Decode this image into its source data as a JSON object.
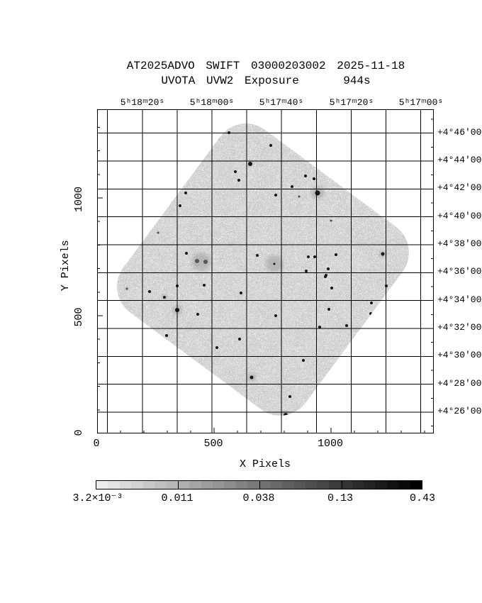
{
  "chart_data": {
    "type": "heatmap",
    "title": "AT2025ADVO SWIFT 03000203002 2025-11-18",
    "subtitle": "UVOTA UVW2 Exposure    944s",
    "xlabel": "X Pixels",
    "ylabel": "Y Pixels",
    "x_tick_labels": [
      "0",
      "500",
      "1000"
    ],
    "y_tick_labels": [
      "0",
      "500",
      "1000"
    ],
    "x_range": [
      0,
      1440
    ],
    "y_range": [
      0,
      1380
    ],
    "grid": "on",
    "top_axis_ra_tick_labels": [
      "5ʰ18ᵐ20ˢ",
      "5ʰ18ᵐ00ˢ",
      "5ʰ17ᵐ40ˢ",
      "5ʰ17ᵐ20ˢ",
      "5ʰ17ᵐ00ˢ"
    ],
    "right_axis_dec_tick_labels": [
      "+4°46'00",
      "+4°44'00",
      "+4°42'00",
      "+4°40'00",
      "+4°38'00",
      "+4°36'00",
      "+4°34'00",
      "+4°32'00",
      "+4°30'00",
      "+4°28'00",
      "+4°26'00"
    ],
    "colorbar": {
      "orientation": "horizontal",
      "scale": "log",
      "tick_labels": [
        "3.2×10⁻³",
        "0.011",
        "0.038",
        "0.13",
        "0.43"
      ],
      "min_color": "#ececec",
      "max_color": "#000000"
    },
    "field": {
      "shape": "rotated-rounded-square",
      "rotation_deg": 36.5,
      "background": "#d6d6d6",
      "sources": [
        [
          311,
          118,
          3.5,
          9,
          0
        ],
        [
          141,
          214,
          3,
          0,
          0
        ],
        [
          153,
          215,
          3,
          0,
          0
        ],
        [
          147,
          215,
          0,
          13,
          0
        ],
        [
          250,
          218,
          1.5,
          12,
          0
        ],
        [
          113,
          283,
          3,
          7,
          0
        ],
        [
          266,
          431,
          3,
          6,
          0
        ],
        [
          218,
          378,
          2.5,
          6,
          0
        ],
        [
          216,
          77,
          3,
          4,
          0
        ],
        [
          403,
          204,
          2.5,
          5,
          0
        ],
        [
          95,
          265,
          2,
          4,
          0
        ],
        [
          186,
          33,
          2,
          0,
          0
        ],
        [
          245,
          51,
          2,
          0,
          0
        ],
        [
          195,
          88,
          2,
          0,
          0
        ],
        [
          200,
          100,
          2,
          0,
          0
        ],
        [
          294,
          94,
          2,
          0,
          0
        ],
        [
          306,
          98,
          2,
          0,
          0
        ],
        [
          125,
          118,
          2,
          0,
          0
        ],
        [
          252,
          121,
          2,
          0,
          0
        ],
        [
          275,
          109,
          2,
          0,
          0
        ],
        [
          117,
          136,
          2,
          0,
          0
        ],
        [
          126,
          203,
          2,
          0,
          0
        ],
        [
          226,
          206,
          2,
          0,
          0
        ],
        [
          298,
          208,
          2,
          0,
          0
        ],
        [
          307,
          208,
          2,
          0,
          0
        ],
        [
          337,
          205,
          2,
          0,
          0
        ],
        [
          295,
          228,
          2,
          0,
          0
        ],
        [
          326,
          225,
          2,
          0,
          0
        ],
        [
          323,
          234,
          2,
          0,
          0
        ],
        [
          322,
          236,
          2,
          0,
          0
        ],
        [
          113,
          249,
          2,
          0,
          0
        ],
        [
          151,
          248,
          2,
          0,
          0
        ],
        [
          408,
          249,
          2,
          0,
          0
        ],
        [
          331,
          252,
          2,
          0,
          0
        ],
        [
          203,
          259,
          2,
          0,
          0
        ],
        [
          74,
          257,
          2,
          0,
          0
        ],
        [
          387,
          273,
          2,
          0,
          0
        ],
        [
          327,
          282,
          2,
          0,
          0
        ],
        [
          142,
          289,
          2,
          0,
          0
        ],
        [
          252,
          291,
          2,
          0,
          0
        ],
        [
          386,
          288,
          2,
          0,
          0
        ],
        [
          314,
          307,
          2,
          0,
          0
        ],
        [
          352,
          305,
          2,
          0,
          0
        ],
        [
          98,
          319,
          2,
          0,
          0
        ],
        [
          201,
          324,
          2,
          0,
          0
        ],
        [
          169,
          336,
          2,
          0,
          0
        ],
        [
          351,
          345,
          2,
          0,
          0
        ],
        [
          291,
          354,
          2,
          0,
          0
        ],
        [
          272,
          405,
          2,
          0,
          0
        ],
        [
          285,
          123,
          1.5,
          0,
          1
        ],
        [
          330,
          157,
          1.5,
          0,
          1
        ],
        [
          42,
          253,
          1.5,
          3,
          1
        ],
        [
          128,
          89,
          1.5,
          0,
          1
        ],
        [
          86,
          174,
          1.5,
          0,
          1
        ]
      ]
    }
  }
}
